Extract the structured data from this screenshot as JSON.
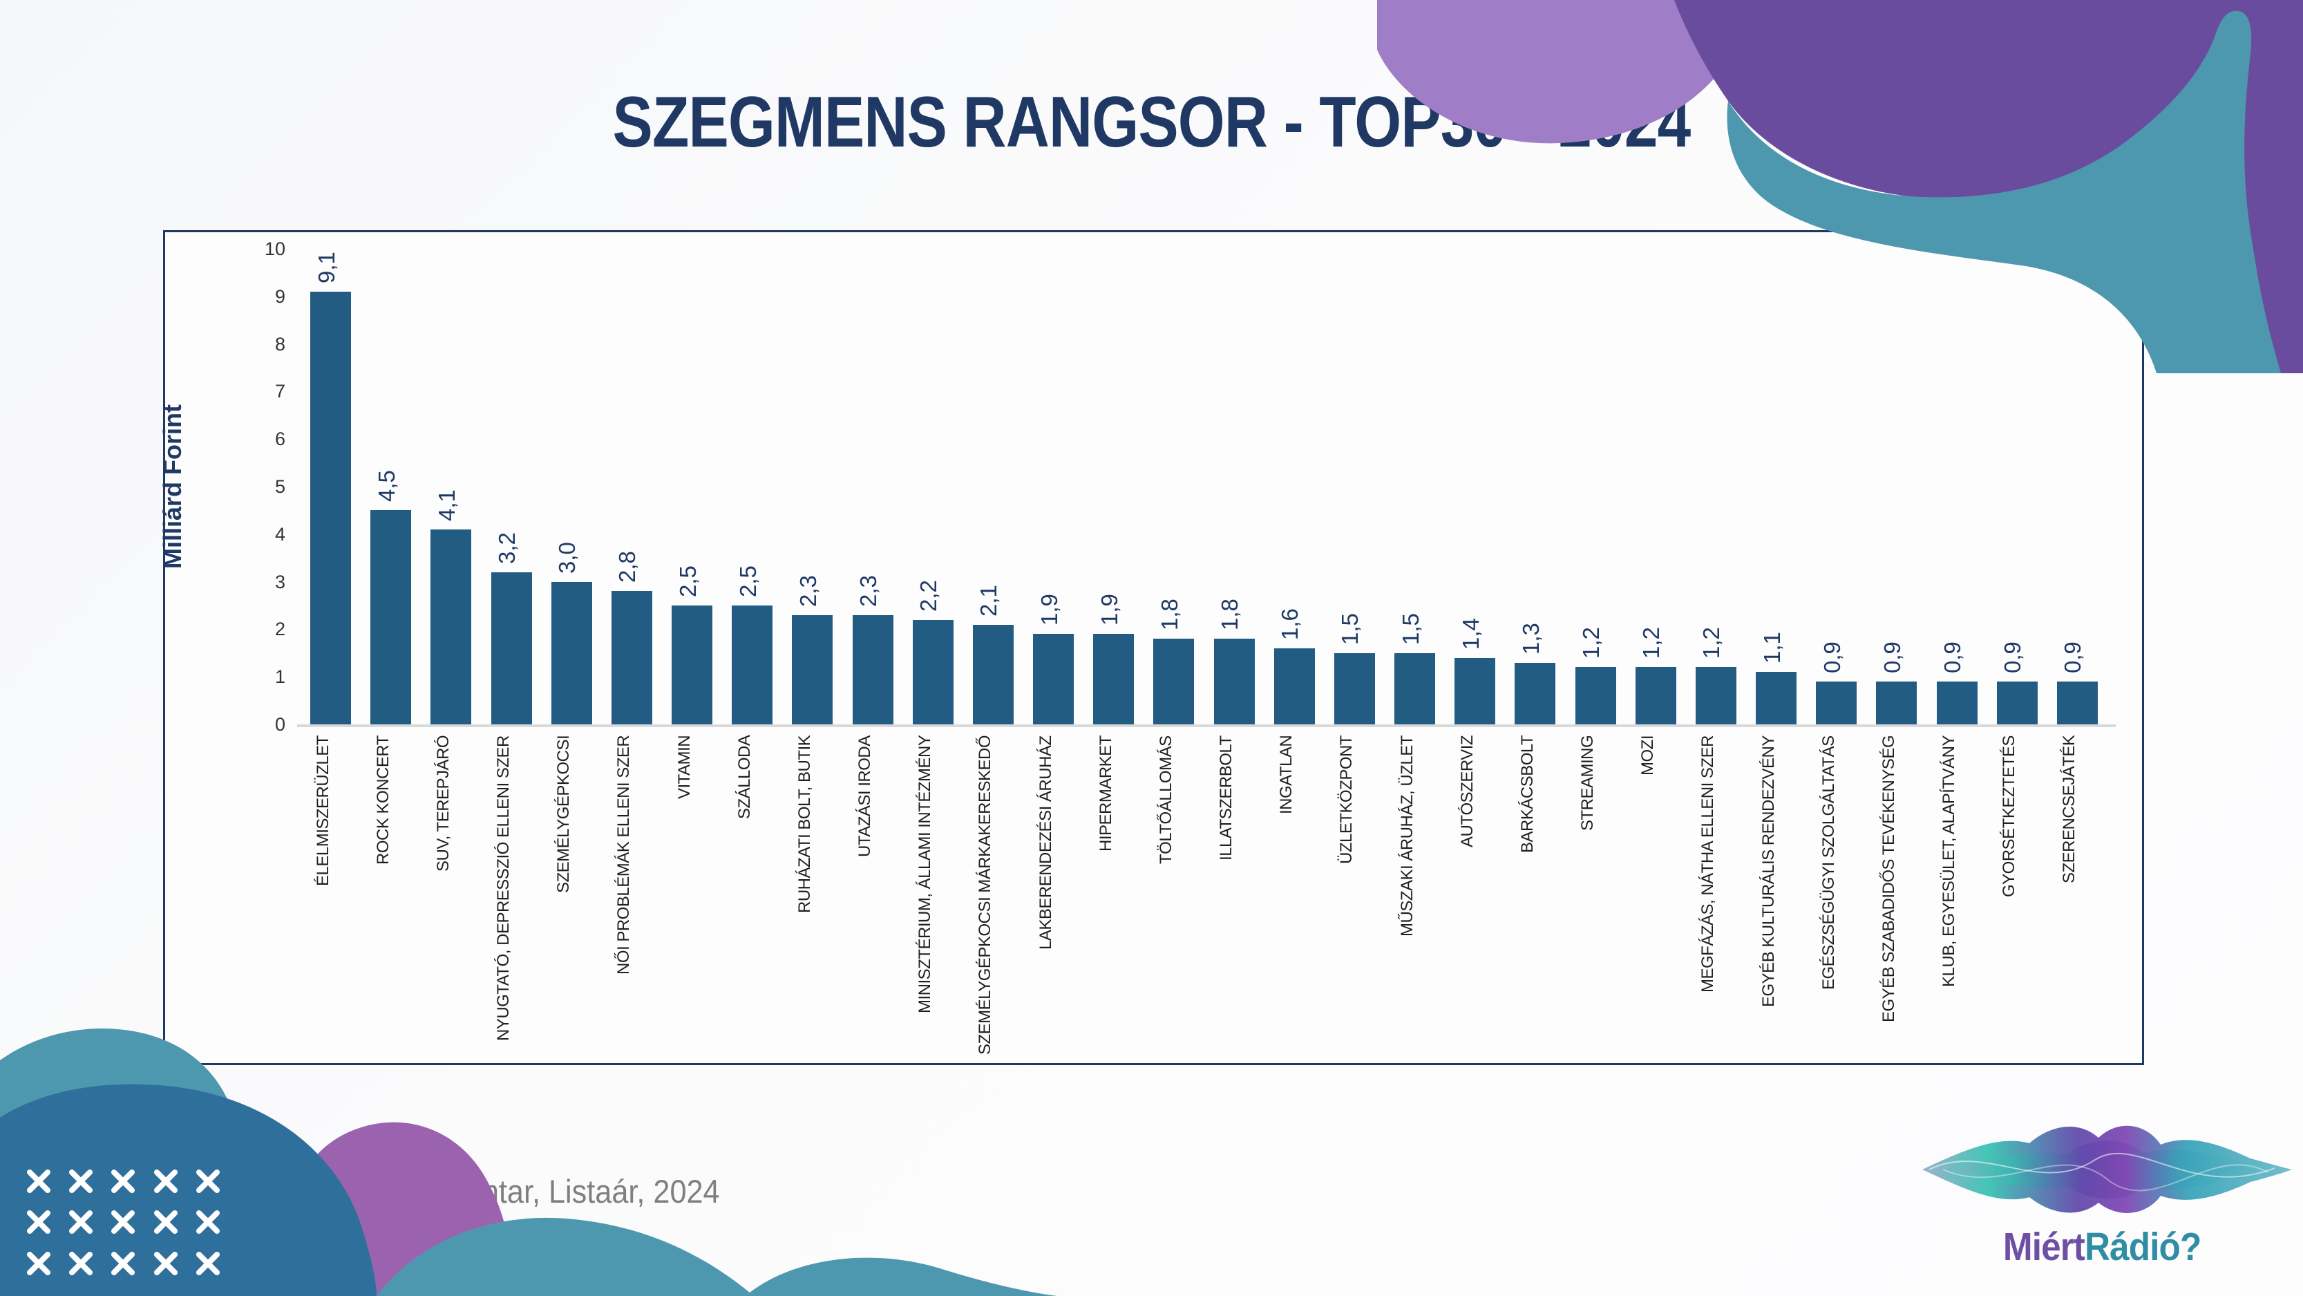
{
  "title": "SZEGMENS RANGSOR - TOP30 - 2024",
  "source": "Forrás: Kantar, Listaár, 2024",
  "logo": {
    "part1": "Miért",
    "part2": "Rádió?"
  },
  "colors": {
    "title_navy": "#1F3864",
    "bar_fill": "#235C82",
    "frame_border": "#203864",
    "axis_line": "#D9D9D9",
    "category_text": "#1f1f1f",
    "source_gray": "#7F7F7F",
    "deco_teal": "#4E98AF",
    "deco_steel_blue": "#2F6F9B",
    "deco_purple": "#9B63AF",
    "deco_light_purple": "#9F7EC7",
    "deco_dark_purple": "#6A4C9E",
    "logo_purple": "#6F4FA3",
    "logo_teal": "#2F8DA4"
  },
  "chart_data": {
    "type": "bar",
    "title": "SZEGMENS RANGSOR - TOP30 - 2024",
    "xlabel": "",
    "ylabel": "Milliárd Forint",
    "ylim": [
      0,
      10
    ],
    "yticks": [
      0,
      1,
      2,
      3,
      4,
      5,
      6,
      7,
      8,
      9,
      10
    ],
    "grid": false,
    "legend": "none",
    "bar_color": "#235C82",
    "value_label_format": "decimal-comma, 1 digit, rotated 90° (reads bottom-to-top)",
    "categories": [
      "ÉLELMISZERÜZLET",
      "ROCK KONCERT",
      "SUV, TEREPJÁRÓ",
      "NYUGTATÓ, DEPRESSZIÓ ELLENI SZER",
      "SZEMÉLYGÉPKOCSI",
      "NŐI PROBLÉMÁK ELLENI SZER",
      "VITAMIN",
      "SZÁLLODA",
      "RUHÁZATI BOLT, BUTIK",
      "UTAZÁSI IRODA",
      "MINISZTÉRIUM, ÁLLAMI INTÉZMÉNY",
      "SZEMÉLYGÉPKOCSI MÁRKAKERESKEDŐ",
      "LAKBERENDEZÉSI ÁRUHÁZ",
      "HIPERMARKET",
      "TÖLTŐÁLLOMÁS",
      "ILLATSZERBOLT",
      "INGATLAN",
      "ÜZLETKÖZPONT",
      "MŰSZAKI ÁRUHÁZ, ÜZLET",
      "AUTÓSZERVIZ",
      "BARKÁCSBOLT",
      "STREAMING",
      "MOZI",
      "MEGFÁZÁS, NÁTHA ELLENI SZER",
      "EGYÉB KULTURÁLIS RENDEZVÉNY",
      "EGÉSZSÉGÜGYI SZOLGÁLTATÁS",
      "EGYÉB SZABADIDŐS TEVÉKENYSÉG",
      "KLUB, EGYESÜLET, ALAPÍTVÁNY",
      "GYORSÉTKEZTETÉS",
      "SZERENCSEJÁTÉK"
    ],
    "values": [
      9.1,
      4.5,
      4.1,
      3.2,
      3.0,
      2.8,
      2.5,
      2.5,
      2.3,
      2.3,
      2.2,
      2.1,
      1.9,
      1.9,
      1.8,
      1.8,
      1.6,
      1.5,
      1.5,
      1.4,
      1.3,
      1.2,
      1.2,
      1.2,
      1.1,
      0.9,
      0.9,
      0.9,
      0.9,
      0.9
    ],
    "value_labels": [
      "9,1",
      "4,5",
      "4,1",
      "3,2",
      "3,0",
      "2,8",
      "2,5",
      "2,5",
      "2,3",
      "2,3",
      "2,2",
      "2,1",
      "1,9",
      "1,9",
      "1,8",
      "1,8",
      "1,6",
      "1,5",
      "1,5",
      "1,4",
      "1,3",
      "1,2",
      "1,2",
      "1,2",
      "1,1",
      "0,9",
      "0,9",
      "0,9",
      "0,9",
      "0,9"
    ]
  }
}
